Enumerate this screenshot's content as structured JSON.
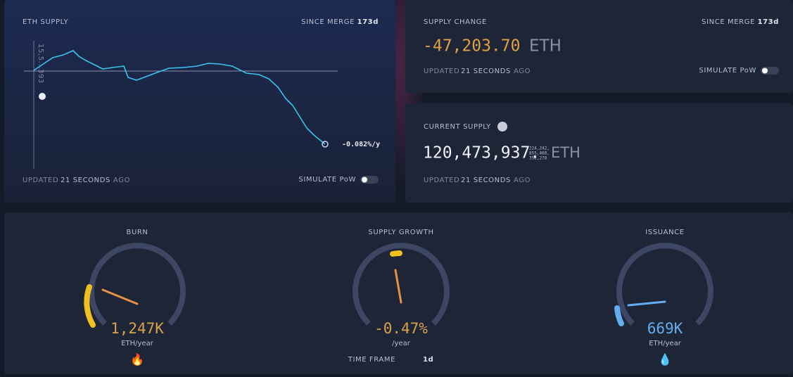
{
  "eth_supply": {
    "title": "ETH SUPPLY",
    "since_label": "SINCE MERGE",
    "since_value": "173d",
    "axis_label": "15,5..,393",
    "rate": "-0.082%/y",
    "updated": {
      "prefix": "UPDATED",
      "time": "21 SECONDS",
      "suffix": "AGO"
    },
    "toggle": "SIMULATE PoW"
  },
  "supply_change": {
    "title": "SUPPLY CHANGE",
    "since_label": "SINCE MERGE",
    "since_value": "173d",
    "value": "-47,203.70",
    "unit": "ETH",
    "updated": {
      "prefix": "UPDATED",
      "time": "21 SECONDS",
      "suffix": "AGO"
    },
    "toggle": "SIMULATE PoW"
  },
  "current_supply": {
    "title": "CURRENT SUPPLY",
    "value": "120,473,937.",
    "decimals": [
      "224,242,",
      "855,468,",
      "352,278"
    ],
    "unit": "ETH",
    "updated": {
      "prefix": "UPDATED",
      "time": "21 SECONDS",
      "suffix": "AGO"
    }
  },
  "gauges": [
    {
      "title": "BURN",
      "value": "1,247K",
      "unit": "ETH/year"
    },
    {
      "title": "SUPPLY GROWTH",
      "value": "-0.47%",
      "unit": "/year"
    },
    {
      "title": "ISSUANCE",
      "value": "669K",
      "unit": "ETH/year"
    }
  ],
  "time_frame": {
    "label": "TIME FRAME",
    "value": "1d"
  }
}
